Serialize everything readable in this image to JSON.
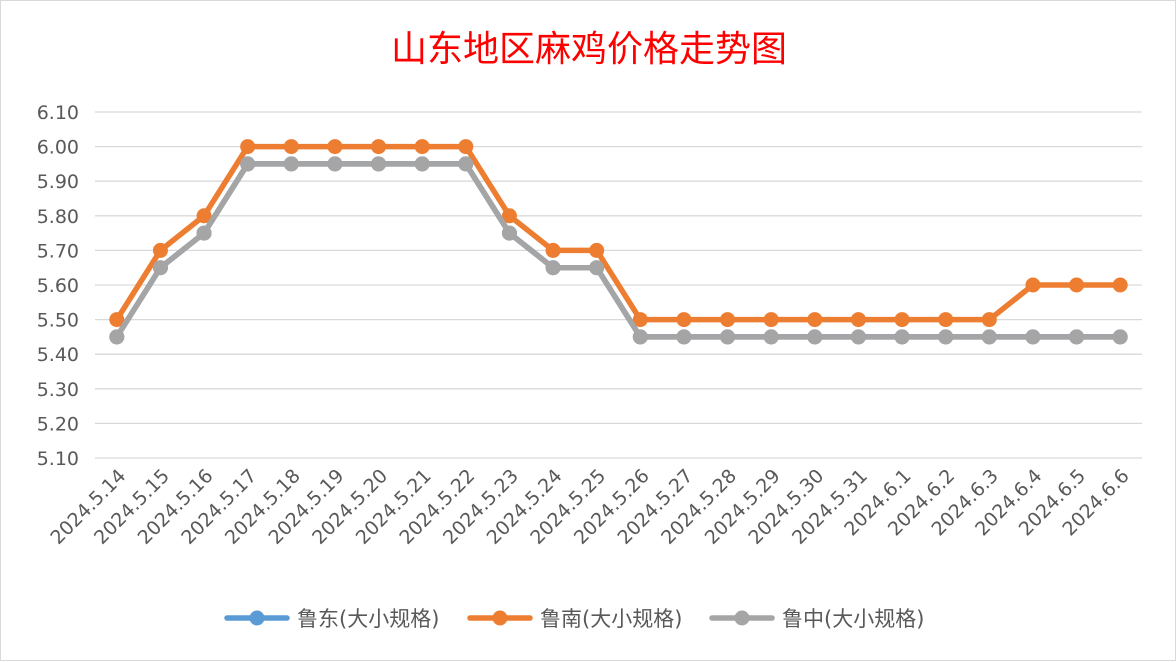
{
  "chart_data": {
    "type": "line",
    "title": "山东地区麻鸡价格走势图",
    "title_color": "#ff0000",
    "xlabel": "",
    "ylabel": "",
    "ylim": [
      5.1,
      6.1
    ],
    "yticks": [
      "5.10",
      "5.20",
      "5.30",
      "5.40",
      "5.50",
      "5.60",
      "5.70",
      "5.80",
      "5.90",
      "6.00",
      "6.10"
    ],
    "grid": true,
    "legend_position": "bottom",
    "categories": [
      "2024.5.14",
      "2024.5.15",
      "2024.5.16",
      "2024.5.17",
      "2024.5.18",
      "2024.5.19",
      "2024.5.20",
      "2024.5.21",
      "2024.5.22",
      "2024.5.23",
      "2024.5.24",
      "2024.5.25",
      "2024.5.26",
      "2024.5.27",
      "2024.5.28",
      "2024.5.29",
      "2024.5.30",
      "2024.5.31",
      "2024.6.1",
      "2024.6.2",
      "2024.6.3",
      "2024.6.4",
      "2024.6.5",
      "2024.6.6"
    ],
    "series": [
      {
        "name": "鲁东(大小规格)",
        "color": "#5b9bd5",
        "values": [
          5.45,
          5.65,
          5.75,
          5.95,
          5.95,
          5.95,
          5.95,
          5.95,
          5.95,
          5.75,
          5.65,
          5.65,
          5.45,
          5.45,
          5.45,
          5.45,
          5.45,
          5.45,
          5.45,
          5.45,
          5.45,
          5.45,
          5.45,
          5.45
        ]
      },
      {
        "name": "鲁南(大小规格)",
        "color": "#ed7d31",
        "values": [
          5.5,
          5.7,
          5.8,
          6.0,
          6.0,
          6.0,
          6.0,
          6.0,
          6.0,
          5.8,
          5.7,
          5.7,
          5.5,
          5.5,
          5.5,
          5.5,
          5.5,
          5.5,
          5.5,
          5.5,
          5.5,
          5.6,
          5.6,
          5.6
        ]
      },
      {
        "name": "鲁中(大小规格)",
        "color": "#a5a5a5",
        "values": [
          5.45,
          5.65,
          5.75,
          5.95,
          5.95,
          5.95,
          5.95,
          5.95,
          5.95,
          5.75,
          5.65,
          5.65,
          5.45,
          5.45,
          5.45,
          5.45,
          5.45,
          5.45,
          5.45,
          5.45,
          5.45,
          5.45,
          5.45,
          5.45
        ]
      }
    ]
  }
}
